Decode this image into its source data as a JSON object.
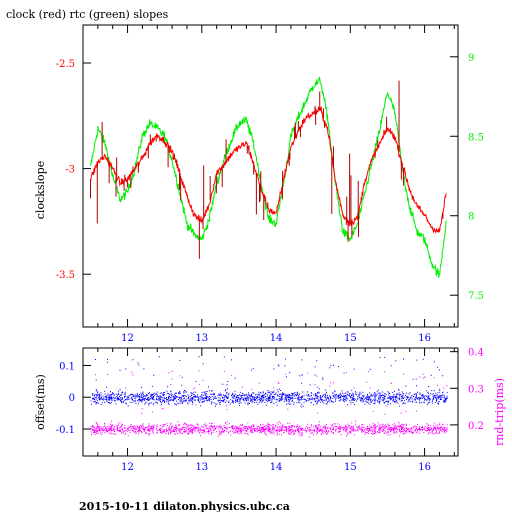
{
  "title": "clock (red) rtc (green) slopes",
  "footer": "2015-10-11 dilaton.physics.ubc.ca",
  "colors": {
    "clock": "#ff0000",
    "clock_spikes": "#b00000",
    "rtc": "#00ee00",
    "offset": "#0000ff",
    "rnd_trip": "#ff00ff",
    "axis": "#000000"
  },
  "chart_data": [
    {
      "type": "line",
      "xlim": [
        11.4,
        16.45
      ],
      "x_ticks": [
        12,
        13,
        14,
        15,
        16
      ],
      "x_tick_labels": [
        "12",
        "13",
        "14",
        "15",
        "16"
      ],
      "left_axis": {
        "label": "clockslope",
        "ylim": [
          -3.75,
          -2.32
        ],
        "ticks": [
          -3.5,
          -3,
          -2.5
        ],
        "tick_labels": [
          "-3.5",
          "-3",
          "-2.5"
        ],
        "color": "#ff0000"
      },
      "right_axis": {
        "label": "",
        "ylim": [
          7.3,
          9.2
        ],
        "ticks": [
          7.5,
          8,
          8.5,
          9
        ],
        "tick_labels": [
          "7.5",
          "8",
          "8.5",
          "9"
        ],
        "color": "#00ee00"
      },
      "series": [
        {
          "axis": "left",
          "color": "#ff0000",
          "x": [
            11.5,
            11.6,
            11.7,
            11.8,
            11.9,
            12.0,
            12.1,
            12.2,
            12.3,
            12.4,
            12.5,
            12.6,
            12.7,
            12.8,
            12.9,
            13.0,
            13.1,
            13.2,
            13.3,
            13.4,
            13.5,
            13.6,
            13.7,
            13.8,
            13.9,
            14.0,
            14.1,
            14.2,
            14.3,
            14.4,
            14.5,
            14.6,
            14.7,
            14.8,
            14.9,
            15.0,
            15.1,
            15.2,
            15.3,
            15.4,
            15.5,
            15.6,
            15.7,
            15.8,
            15.9,
            16.0,
            16.1,
            16.2,
            16.3
          ],
          "y": [
            -3.05,
            -2.97,
            -2.94,
            -3.0,
            -3.07,
            -3.05,
            -3.0,
            -2.95,
            -2.88,
            -2.84,
            -2.87,
            -2.92,
            -3.02,
            -3.13,
            -3.22,
            -3.25,
            -3.17,
            -3.02,
            -2.98,
            -2.93,
            -2.9,
            -2.88,
            -2.98,
            -3.1,
            -3.19,
            -3.22,
            -3.05,
            -2.9,
            -2.82,
            -2.76,
            -2.74,
            -2.72,
            -2.82,
            -3.06,
            -3.22,
            -3.26,
            -3.23,
            -3.05,
            -2.95,
            -2.88,
            -2.81,
            -2.85,
            -2.98,
            -3.1,
            -3.18,
            -3.22,
            -3.28,
            -3.3,
            -3.1
          ]
        },
        {
          "axis": "right",
          "color": "#00ee00",
          "x": [
            11.5,
            11.6,
            11.7,
            11.8,
            11.9,
            12.0,
            12.1,
            12.2,
            12.3,
            12.4,
            12.5,
            12.6,
            12.7,
            12.8,
            12.9,
            13.0,
            13.1,
            13.2,
            13.3,
            13.4,
            13.5,
            13.6,
            13.7,
            13.8,
            13.9,
            14.0,
            14.1,
            14.2,
            14.3,
            14.4,
            14.5,
            14.6,
            14.7,
            14.8,
            14.9,
            15.0,
            15.1,
            15.2,
            15.3,
            15.4,
            15.5,
            15.6,
            15.7,
            15.8,
            15.9,
            16.0,
            16.1,
            16.2,
            16.3
          ],
          "y": [
            8.3,
            8.55,
            8.45,
            8.25,
            8.1,
            8.15,
            8.3,
            8.5,
            8.58,
            8.55,
            8.5,
            8.35,
            8.15,
            7.95,
            7.88,
            7.85,
            7.98,
            8.2,
            8.35,
            8.48,
            8.58,
            8.6,
            8.45,
            8.2,
            7.98,
            7.95,
            8.2,
            8.5,
            8.62,
            8.72,
            8.82,
            8.85,
            8.6,
            8.2,
            7.9,
            7.85,
            7.95,
            8.15,
            8.35,
            8.55,
            8.78,
            8.65,
            8.3,
            8.05,
            7.9,
            7.85,
            7.7,
            7.62,
            8.0
          ]
        }
      ]
    },
    {
      "type": "scatter",
      "xlim": [
        11.4,
        16.45
      ],
      "x_ticks": [
        12,
        13,
        14,
        15,
        16
      ],
      "x_tick_labels": [
        "12",
        "13",
        "14",
        "15",
        "16"
      ],
      "left_axis": {
        "label": "offset(ms)",
        "ylim": [
          -0.185,
          0.155
        ],
        "ticks": [
          -0.1,
          0,
          0.1
        ],
        "tick_labels": [
          "-0.1",
          "0",
          "0.1"
        ],
        "color": "#0000ff"
      },
      "right_axis": {
        "label": "rnd-trip(ms)",
        "ylim": [
          0.115,
          0.41
        ],
        "ticks": [
          0.2,
          0.3,
          0.4
        ],
        "tick_labels": [
          "0.2",
          "0.3",
          "0.4"
        ],
        "color": "#ff00ff"
      },
      "series": [
        {
          "axis": "left",
          "color": "#0000ff",
          "x_range": [
            11.5,
            16.3
          ],
          "center": 0.0,
          "band_halfwidth": 0.035
        },
        {
          "axis": "right",
          "color": "#ff00ff",
          "x_range": [
            11.5,
            16.3
          ],
          "center": 0.19,
          "band_halfwidth": 0.025
        }
      ]
    }
  ]
}
